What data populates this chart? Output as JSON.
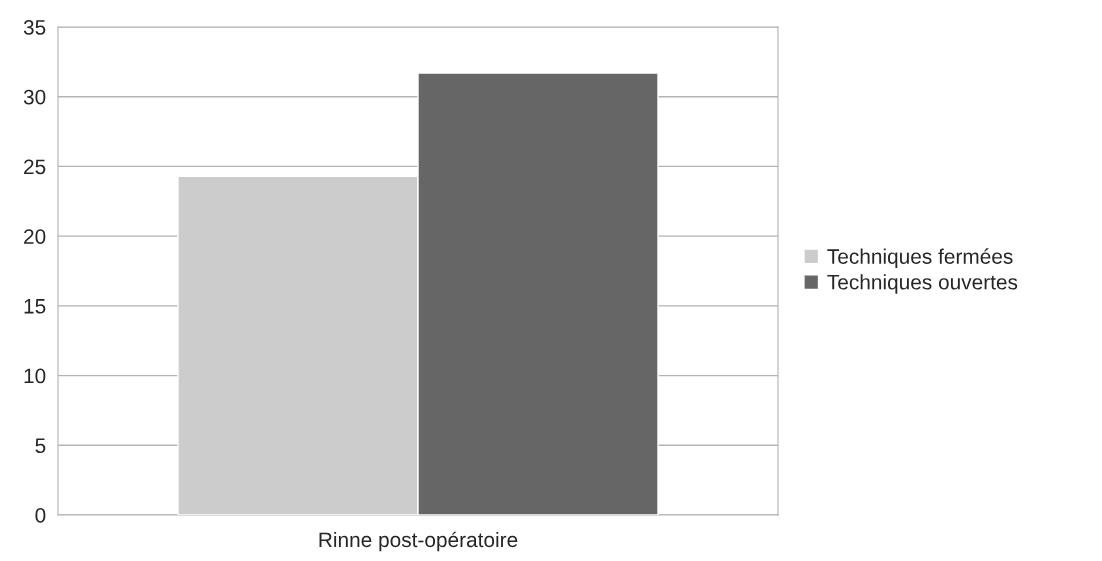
{
  "chart_data": {
    "type": "bar",
    "categories": [
      "Rinne post-opératoire"
    ],
    "series": [
      {
        "name": "Techniques fermées",
        "color": "#cccccc",
        "values": [
          24.3
        ]
      },
      {
        "name": "Techniques ouvertes",
        "color": "#666666",
        "values": [
          31.7
        ]
      }
    ],
    "ylim": [
      0,
      35
    ],
    "yticks": [
      0,
      5,
      10,
      15,
      20,
      25,
      30,
      35
    ],
    "grid": "y",
    "legend": "right"
  }
}
